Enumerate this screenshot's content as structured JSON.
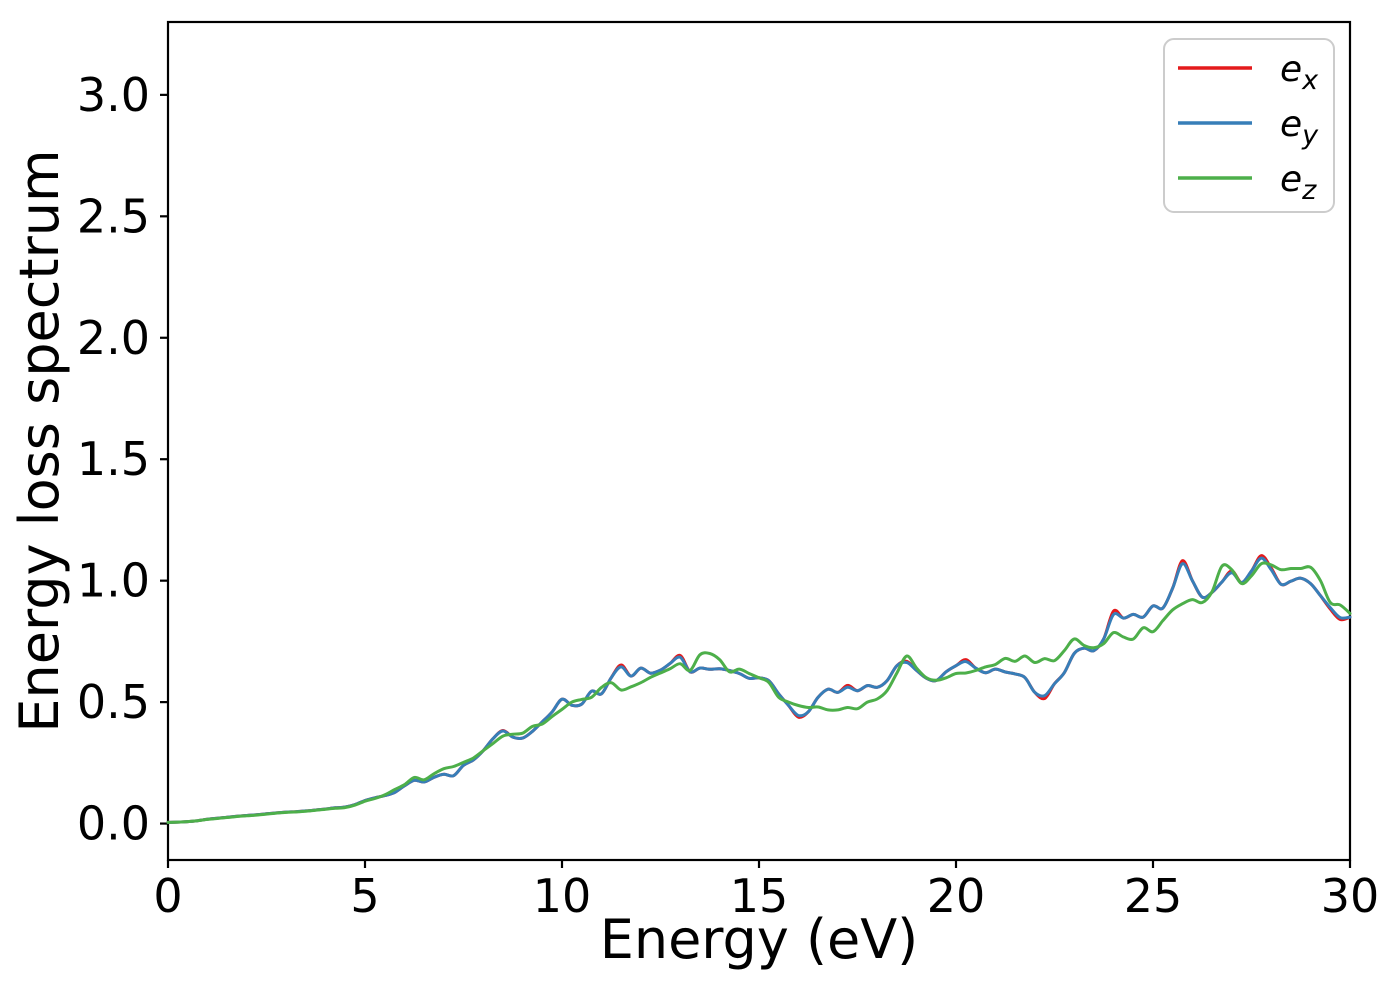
{
  "figure": {
    "background": "#ffffff",
    "spine_color": "#000000",
    "text_color": "#000000"
  },
  "chart_data": {
    "type": "line",
    "title": "",
    "xlabel": "Energy (eV)",
    "ylabel": "Energy loss spectrum",
    "xlim": [
      0,
      30
    ],
    "ylim": [
      -0.15,
      3.3
    ],
    "grid": false,
    "x_ticks": [
      0,
      5,
      10,
      15,
      20,
      25,
      30
    ],
    "x_ticklabels": [
      "0",
      "5",
      "10",
      "15",
      "20",
      "25",
      "30"
    ],
    "y_ticks": [
      0.0,
      0.5,
      1.0,
      1.5,
      2.0,
      2.5,
      3.0
    ],
    "y_ticklabels": [
      "0.0",
      "0.5",
      "1.0",
      "1.5",
      "2.0",
      "2.5",
      "3.0"
    ],
    "legend": {
      "position": "upper right",
      "entries": [
        {
          "label": "e_x",
          "main": "e",
          "sub": "x",
          "color": "#e41a1c"
        },
        {
          "label": "e_y",
          "main": "e",
          "sub": "y",
          "color": "#377eb8"
        },
        {
          "label": "e_z",
          "main": "e",
          "sub": "z",
          "color": "#4daf4a"
        }
      ]
    },
    "x_start": 0,
    "x_step": 0.25,
    "x": [
      0,
      0.25,
      0.5,
      0.75,
      1,
      1.25,
      1.5,
      1.75,
      2,
      2.25,
      2.5,
      2.75,
      3,
      3.25,
      3.5,
      3.75,
      4,
      4.25,
      4.5,
      4.75,
      5,
      5.25,
      5.5,
      5.75,
      6,
      6.25,
      6.5,
      6.75,
      7,
      7.25,
      7.5,
      7.75,
      8,
      8.25,
      8.5,
      8.75,
      9,
      9.25,
      9.5,
      9.75,
      10,
      10.25,
      10.5,
      10.75,
      11,
      11.25,
      11.5,
      11.75,
      12,
      12.25,
      12.5,
      12.75,
      13,
      13.25,
      13.5,
      13.75,
      14,
      14.25,
      14.5,
      14.75,
      15,
      15.25,
      15.5,
      15.75,
      16,
      16.25,
      16.5,
      16.75,
      17,
      17.25,
      17.5,
      17.75,
      18,
      18.25,
      18.5,
      18.75,
      19,
      19.25,
      19.5,
      19.75,
      20,
      20.25,
      20.5,
      20.75,
      21,
      21.25,
      21.5,
      21.75,
      22,
      22.25,
      22.5,
      22.75,
      23,
      23.25,
      23.5,
      23.75,
      24,
      24.25,
      24.5,
      24.75,
      25,
      25.25,
      25.5,
      25.75,
      26,
      26.25,
      26.5,
      26.75,
      27,
      27.25,
      27.5,
      27.75,
      28,
      28.25,
      28.5,
      28.75,
      29,
      29.25,
      29.5,
      29.75,
      30
    ],
    "series": [
      {
        "name": "e_x",
        "color": "#e41a1c",
        "values": [
          0.005,
          0.006,
          0.008,
          0.012,
          0.018,
          0.022,
          0.026,
          0.03,
          0.033,
          0.036,
          0.04,
          0.044,
          0.047,
          0.049,
          0.052,
          0.056,
          0.06,
          0.065,
          0.068,
          0.078,
          0.095,
          0.106,
          0.115,
          0.128,
          0.155,
          0.178,
          0.171,
          0.19,
          0.203,
          0.197,
          0.24,
          0.262,
          0.3,
          0.35,
          0.383,
          0.356,
          0.352,
          0.38,
          0.419,
          0.46,
          0.512,
          0.487,
          0.492,
          0.545,
          0.534,
          0.601,
          0.653,
          0.607,
          0.64,
          0.619,
          0.632,
          0.66,
          0.692,
          0.625,
          0.64,
          0.635,
          0.637,
          0.63,
          0.618,
          0.598,
          0.6,
          0.588,
          0.534,
          0.486,
          0.438,
          0.46,
          0.52,
          0.553,
          0.54,
          0.569,
          0.547,
          0.568,
          0.561,
          0.588,
          0.65,
          0.668,
          0.63,
          0.598,
          0.589,
          0.625,
          0.65,
          0.675,
          0.64,
          0.621,
          0.636,
          0.624,
          0.616,
          0.601,
          0.54,
          0.515,
          0.576,
          0.621,
          0.7,
          0.722,
          0.712,
          0.761,
          0.875,
          0.846,
          0.861,
          0.85,
          0.896,
          0.887,
          0.97,
          1.082,
          1.0,
          0.932,
          0.952,
          0.995,
          1.04,
          0.992,
          1.04,
          1.103,
          1.052,
          0.985,
          0.998,
          1.01,
          0.988,
          0.938,
          0.883,
          0.84,
          0.85
        ]
      },
      {
        "name": "e_y",
        "color": "#377eb8",
        "values": [
          0.005,
          0.006,
          0.008,
          0.012,
          0.018,
          0.022,
          0.026,
          0.03,
          0.033,
          0.036,
          0.04,
          0.044,
          0.047,
          0.049,
          0.052,
          0.056,
          0.06,
          0.065,
          0.068,
          0.078,
          0.095,
          0.106,
          0.115,
          0.128,
          0.155,
          0.178,
          0.171,
          0.19,
          0.203,
          0.197,
          0.24,
          0.262,
          0.3,
          0.35,
          0.381,
          0.356,
          0.352,
          0.38,
          0.419,
          0.46,
          0.512,
          0.487,
          0.492,
          0.545,
          0.534,
          0.601,
          0.645,
          0.607,
          0.64,
          0.619,
          0.632,
          0.66,
          0.685,
          0.625,
          0.64,
          0.635,
          0.637,
          0.63,
          0.618,
          0.598,
          0.6,
          0.588,
          0.534,
          0.486,
          0.445,
          0.46,
          0.52,
          0.553,
          0.54,
          0.561,
          0.547,
          0.568,
          0.561,
          0.588,
          0.65,
          0.663,
          0.63,
          0.598,
          0.589,
          0.625,
          0.65,
          0.667,
          0.64,
          0.621,
          0.636,
          0.624,
          0.616,
          0.601,
          0.54,
          0.527,
          0.576,
          0.621,
          0.7,
          0.722,
          0.712,
          0.761,
          0.861,
          0.846,
          0.861,
          0.85,
          0.896,
          0.887,
          0.97,
          1.07,
          1.0,
          0.932,
          0.952,
          0.995,
          1.033,
          0.992,
          1.04,
          1.093,
          1.045,
          0.985,
          0.998,
          1.01,
          0.988,
          0.938,
          0.889,
          0.848,
          0.85
        ]
      },
      {
        "name": "e_z",
        "color": "#4daf4a",
        "values": [
          0.005,
          0.006,
          0.008,
          0.012,
          0.017,
          0.021,
          0.025,
          0.029,
          0.032,
          0.035,
          0.039,
          0.043,
          0.046,
          0.048,
          0.051,
          0.055,
          0.059,
          0.063,
          0.066,
          0.076,
          0.092,
          0.103,
          0.118,
          0.14,
          0.16,
          0.19,
          0.18,
          0.205,
          0.226,
          0.235,
          0.252,
          0.27,
          0.3,
          0.33,
          0.36,
          0.368,
          0.372,
          0.4,
          0.41,
          0.441,
          0.47,
          0.5,
          0.511,
          0.52,
          0.56,
          0.58,
          0.55,
          0.563,
          0.58,
          0.602,
          0.62,
          0.638,
          0.658,
          0.63,
          0.695,
          0.7,
          0.675,
          0.625,
          0.636,
          0.618,
          0.6,
          0.581,
          0.52,
          0.5,
          0.486,
          0.478,
          0.48,
          0.468,
          0.468,
          0.478,
          0.473,
          0.5,
          0.513,
          0.547,
          0.62,
          0.69,
          0.64,
          0.6,
          0.59,
          0.6,
          0.618,
          0.62,
          0.63,
          0.645,
          0.655,
          0.68,
          0.668,
          0.69,
          0.663,
          0.679,
          0.671,
          0.712,
          0.76,
          0.733,
          0.724,
          0.741,
          0.786,
          0.768,
          0.76,
          0.806,
          0.79,
          0.835,
          0.88,
          0.905,
          0.922,
          0.91,
          0.955,
          1.06,
          1.045,
          0.988,
          1.02,
          1.07,
          1.065,
          1.045,
          1.05,
          1.05,
          1.055,
          1.0,
          0.91,
          0.9,
          0.865
        ]
      }
    ]
  }
}
